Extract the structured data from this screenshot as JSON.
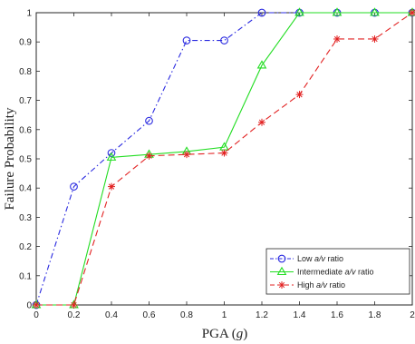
{
  "chart_data": {
    "type": "line",
    "xlabel_text": "PGA (",
    "xlabel_var": "g",
    "xlabel_close": ")",
    "ylabel": "Failure Probability",
    "xlim": [
      0,
      2
    ],
    "ylim": [
      0,
      1
    ],
    "x_ticks": [
      "0",
      "0.2",
      "0.4",
      "0.6",
      "0.8",
      "1",
      "1.2",
      "1.4",
      "1.6",
      "1.8",
      "2"
    ],
    "y_ticks": [
      "0",
      "0.1",
      "0.2",
      "0.3",
      "0.4",
      "0.5",
      "0.6",
      "0.7",
      "0.8",
      "0.9",
      "1"
    ],
    "grid": false,
    "legend_position": "bottom-right",
    "x": [
      0,
      0.2,
      0.4,
      0.6,
      0.8,
      1.0,
      1.2,
      1.4,
      1.6,
      1.8,
      2.0
    ],
    "series": [
      {
        "name_prefix": "Low ",
        "name_var": "a/v",
        "name_suffix": " ratio",
        "color": "#2a2ae0",
        "line_style": "dash-dot",
        "marker": "circle",
        "values": [
          0,
          0.405,
          0.52,
          0.63,
          0.905,
          0.905,
          1.0,
          1.0,
          1.0,
          1.0,
          1.0
        ]
      },
      {
        "name_prefix": "Intermediate ",
        "name_var": "a/v",
        "name_suffix": " ratio",
        "color": "#22dd22",
        "line_style": "solid",
        "marker": "triangle",
        "values": [
          0,
          0,
          0.505,
          0.515,
          0.525,
          0.54,
          0.82,
          1.0,
          1.0,
          1.0,
          1.0
        ]
      },
      {
        "name_prefix": "High ",
        "name_var": "a/v",
        "name_suffix": " ratio",
        "color": "#e22222",
        "line_style": "dashed",
        "marker": "asterisk",
        "values": [
          0,
          0,
          0.405,
          0.51,
          0.515,
          0.52,
          0.625,
          0.72,
          0.91,
          0.91,
          1.0
        ]
      }
    ]
  }
}
